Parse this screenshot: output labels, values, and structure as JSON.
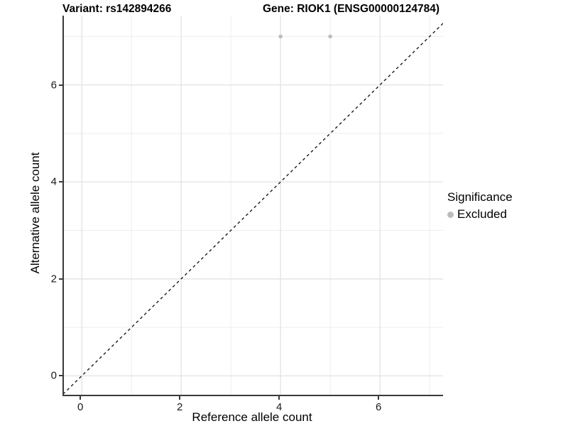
{
  "header": {
    "variant_title": "Variant: rs142894266",
    "gene_title": "Gene: RIOK1 (ENSG00000124784)"
  },
  "legend": {
    "title": "Significance",
    "items": [
      {
        "label": "Excluded",
        "color": "#bcbcbc"
      }
    ]
  },
  "chart_data": {
    "type": "scatter",
    "title": "Variant: rs142894266 — Gene: RIOK1 (ENSG00000124784)",
    "xlabel": "Reference allele count",
    "ylabel": "Alternative allele count",
    "xlim": [
      -0.36,
      7.27
    ],
    "ylim": [
      -0.39,
      7.43
    ],
    "x_ticks": [
      0,
      2,
      4,
      6
    ],
    "y_ticks": [
      0,
      2,
      4,
      6
    ],
    "x_minor_ticks": [
      1,
      3,
      5,
      7
    ],
    "y_minor_ticks": [
      1,
      3,
      5,
      7
    ],
    "grid": true,
    "legend_position": "right",
    "series": [
      {
        "name": "Excluded",
        "color": "#bcbcbc",
        "points": [
          {
            "x": 4,
            "y": 7
          },
          {
            "x": 5,
            "y": 7
          }
        ]
      }
    ],
    "reference_line": {
      "slope": 1,
      "intercept": 0,
      "style": "dashed",
      "color": "#1a1a1a"
    },
    "colors": {
      "major_grid": "#e2e2e2",
      "minor_grid": "#ededed",
      "axis_line": "#3a3a3a"
    }
  }
}
